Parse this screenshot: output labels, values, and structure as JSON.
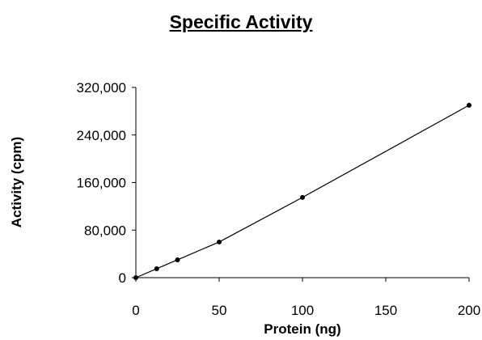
{
  "chart_data": {
    "type": "line",
    "title": "Specific Activity",
    "xlabel": "Protein (ng)",
    "ylabel": "Activity (cpm)",
    "xlim": [
      0,
      200
    ],
    "ylim": [
      0,
      320000
    ],
    "xticks": [
      0,
      50,
      100,
      150,
      200
    ],
    "yticks": [
      0,
      80000,
      160000,
      240000,
      320000
    ],
    "xtick_labels": [
      "0",
      "50",
      "100",
      "150",
      "200"
    ],
    "ytick_labels": [
      "0",
      "80,000",
      "160,000",
      "240,000",
      "320,000"
    ],
    "grid": false,
    "series": [
      {
        "x": [
          0,
          12.5,
          25,
          50,
          100,
          200
        ],
        "y": [
          0,
          15000,
          30000,
          60000,
          135000,
          290000
        ],
        "color": "#000000"
      }
    ]
  }
}
